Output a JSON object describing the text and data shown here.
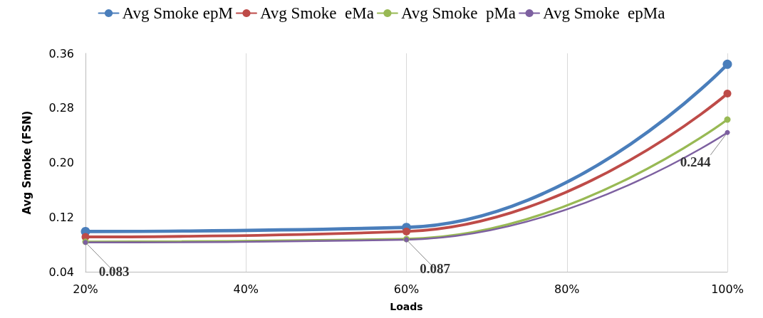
{
  "chart_data": {
    "type": "line",
    "xlabel": "Loads",
    "ylabel": "Avg Smoke (FSN)",
    "x": [
      20,
      60,
      100
    ],
    "xlim": [
      20,
      100
    ],
    "xticks": [
      {
        "value": 20,
        "label": "20%"
      },
      {
        "value": 40,
        "label": "40%"
      },
      {
        "value": 60,
        "label": "60%"
      },
      {
        "value": 80,
        "label": "80%"
      },
      {
        "value": 100,
        "label": "100%"
      }
    ],
    "ylim": [
      0.04,
      0.36
    ],
    "yticks": [
      0.04,
      0.12,
      {
        "value": 0.2,
        "label": "0.20"
      },
      0.28,
      0.36
    ],
    "grid": "x",
    "legend": "top",
    "marker": "circle",
    "line_style": "solid",
    "series": [
      {
        "name": "Avg Smoke epM",
        "color": "#4a7ebb",
        "values": [
          0.099,
          0.105,
          0.344
        ]
      },
      {
        "name": "Avg Smoke  eMa",
        "color": "#be4b48",
        "values": [
          0.091,
          0.099,
          0.301
        ]
      },
      {
        "name": "Avg Smoke  pMa",
        "color": "#98b954",
        "values": [
          0.084,
          0.088,
          0.263
        ]
      },
      {
        "name": "Avg Smoke  epMa",
        "color": "#7d60a0",
        "values": [
          0.083,
          0.087,
          0.244
        ],
        "value_labels": [
          "0.083",
          "0.087",
          "0.244"
        ]
      }
    ]
  }
}
